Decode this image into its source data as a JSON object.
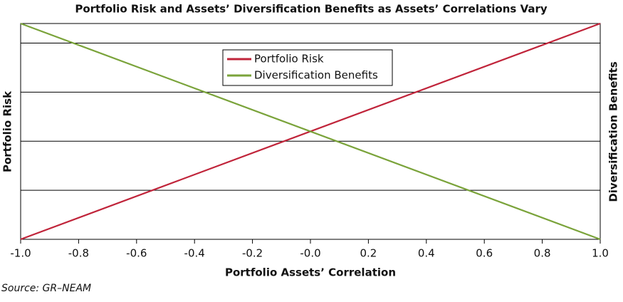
{
  "chart_data": {
    "type": "line",
    "title": "Portfolio Risk and Assets’ Diversification Benefits as Assets’ Correlations Vary",
    "x_label": "Portfolio Assets’ Correlation",
    "y_label": "Portfolio Risk",
    "y2_label": "Diversification Benefits",
    "source": "Source: GR–NEAM",
    "x": [
      -1,
      1
    ],
    "series": [
      {
        "name": "Portfolio Risk",
        "color": "#c0243a",
        "values": [
          0,
          4.4
        ]
      },
      {
        "name": "Diversification Benefits",
        "color": "#7aa33a",
        "values": [
          4.4,
          0
        ],
        "axis": "y2"
      }
    ],
    "xlim": [
      -1,
      1
    ],
    "xticks": [
      {
        "value": -1,
        "label": "-1.0"
      },
      -0.8,
      -0.6,
      -0.4,
      -0.2,
      {
        "value": 0,
        "label": "-0.0"
      },
      0.2,
      0.4,
      0.6,
      0.8,
      {
        "value": 1,
        "label": "1.0"
      }
    ],
    "ylim": [
      0,
      4.4
    ],
    "yticks": [
      0,
      1,
      2,
      3,
      4
    ],
    "y2lim": [
      0,
      4.4
    ],
    "grid": true,
    "legend": "upper-center"
  }
}
